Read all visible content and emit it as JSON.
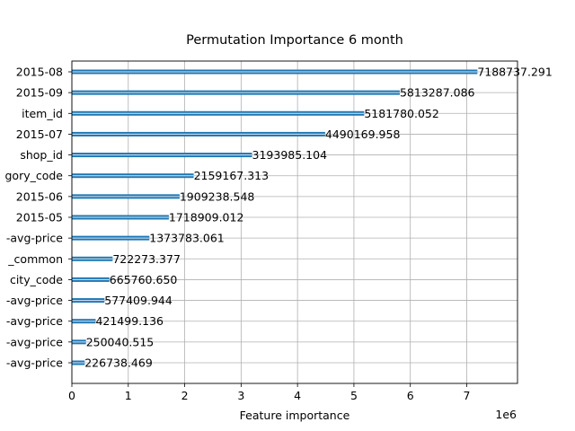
{
  "chart_data": {
    "type": "bar",
    "orientation": "horizontal",
    "title": "Permutation Importance 6 month",
    "xlabel": "Feature importance",
    "ylabel": "",
    "x_offset_label": "1e6",
    "xlim": [
      0,
      7.9
    ],
    "xticks": [
      0,
      1,
      2,
      3,
      4,
      5,
      6,
      7
    ],
    "grid": true,
    "bar_color": "#1f77b4",
    "categories": [
      "2015-08",
      "2015-09",
      "item_id",
      "2015-07",
      "shop_id",
      "gory_code",
      "2015-06",
      "2015-05",
      "-avg-price",
      "_common",
      "city_code",
      "-avg-price",
      "-avg-price",
      "-avg-price",
      "-avg-price"
    ],
    "values": [
      7188737.291,
      5813287.086,
      5181780.052,
      4490169.958,
      3193985.104,
      2159167.313,
      1909238.548,
      1718909.012,
      1373783.061,
      722273.377,
      665760.65,
      577409.944,
      421499.136,
      250040.515,
      226738.469
    ],
    "value_labels": [
      "7188737.291",
      "5813287.086",
      "5181780.052",
      "4490169.958",
      "3193985.104",
      "2159167.313",
      "1909238.548",
      "1718909.012",
      "1373783.061",
      "722273.377",
      "665760.650",
      "577409.944",
      "421499.136",
      "250040.515",
      "226738.469"
    ]
  }
}
